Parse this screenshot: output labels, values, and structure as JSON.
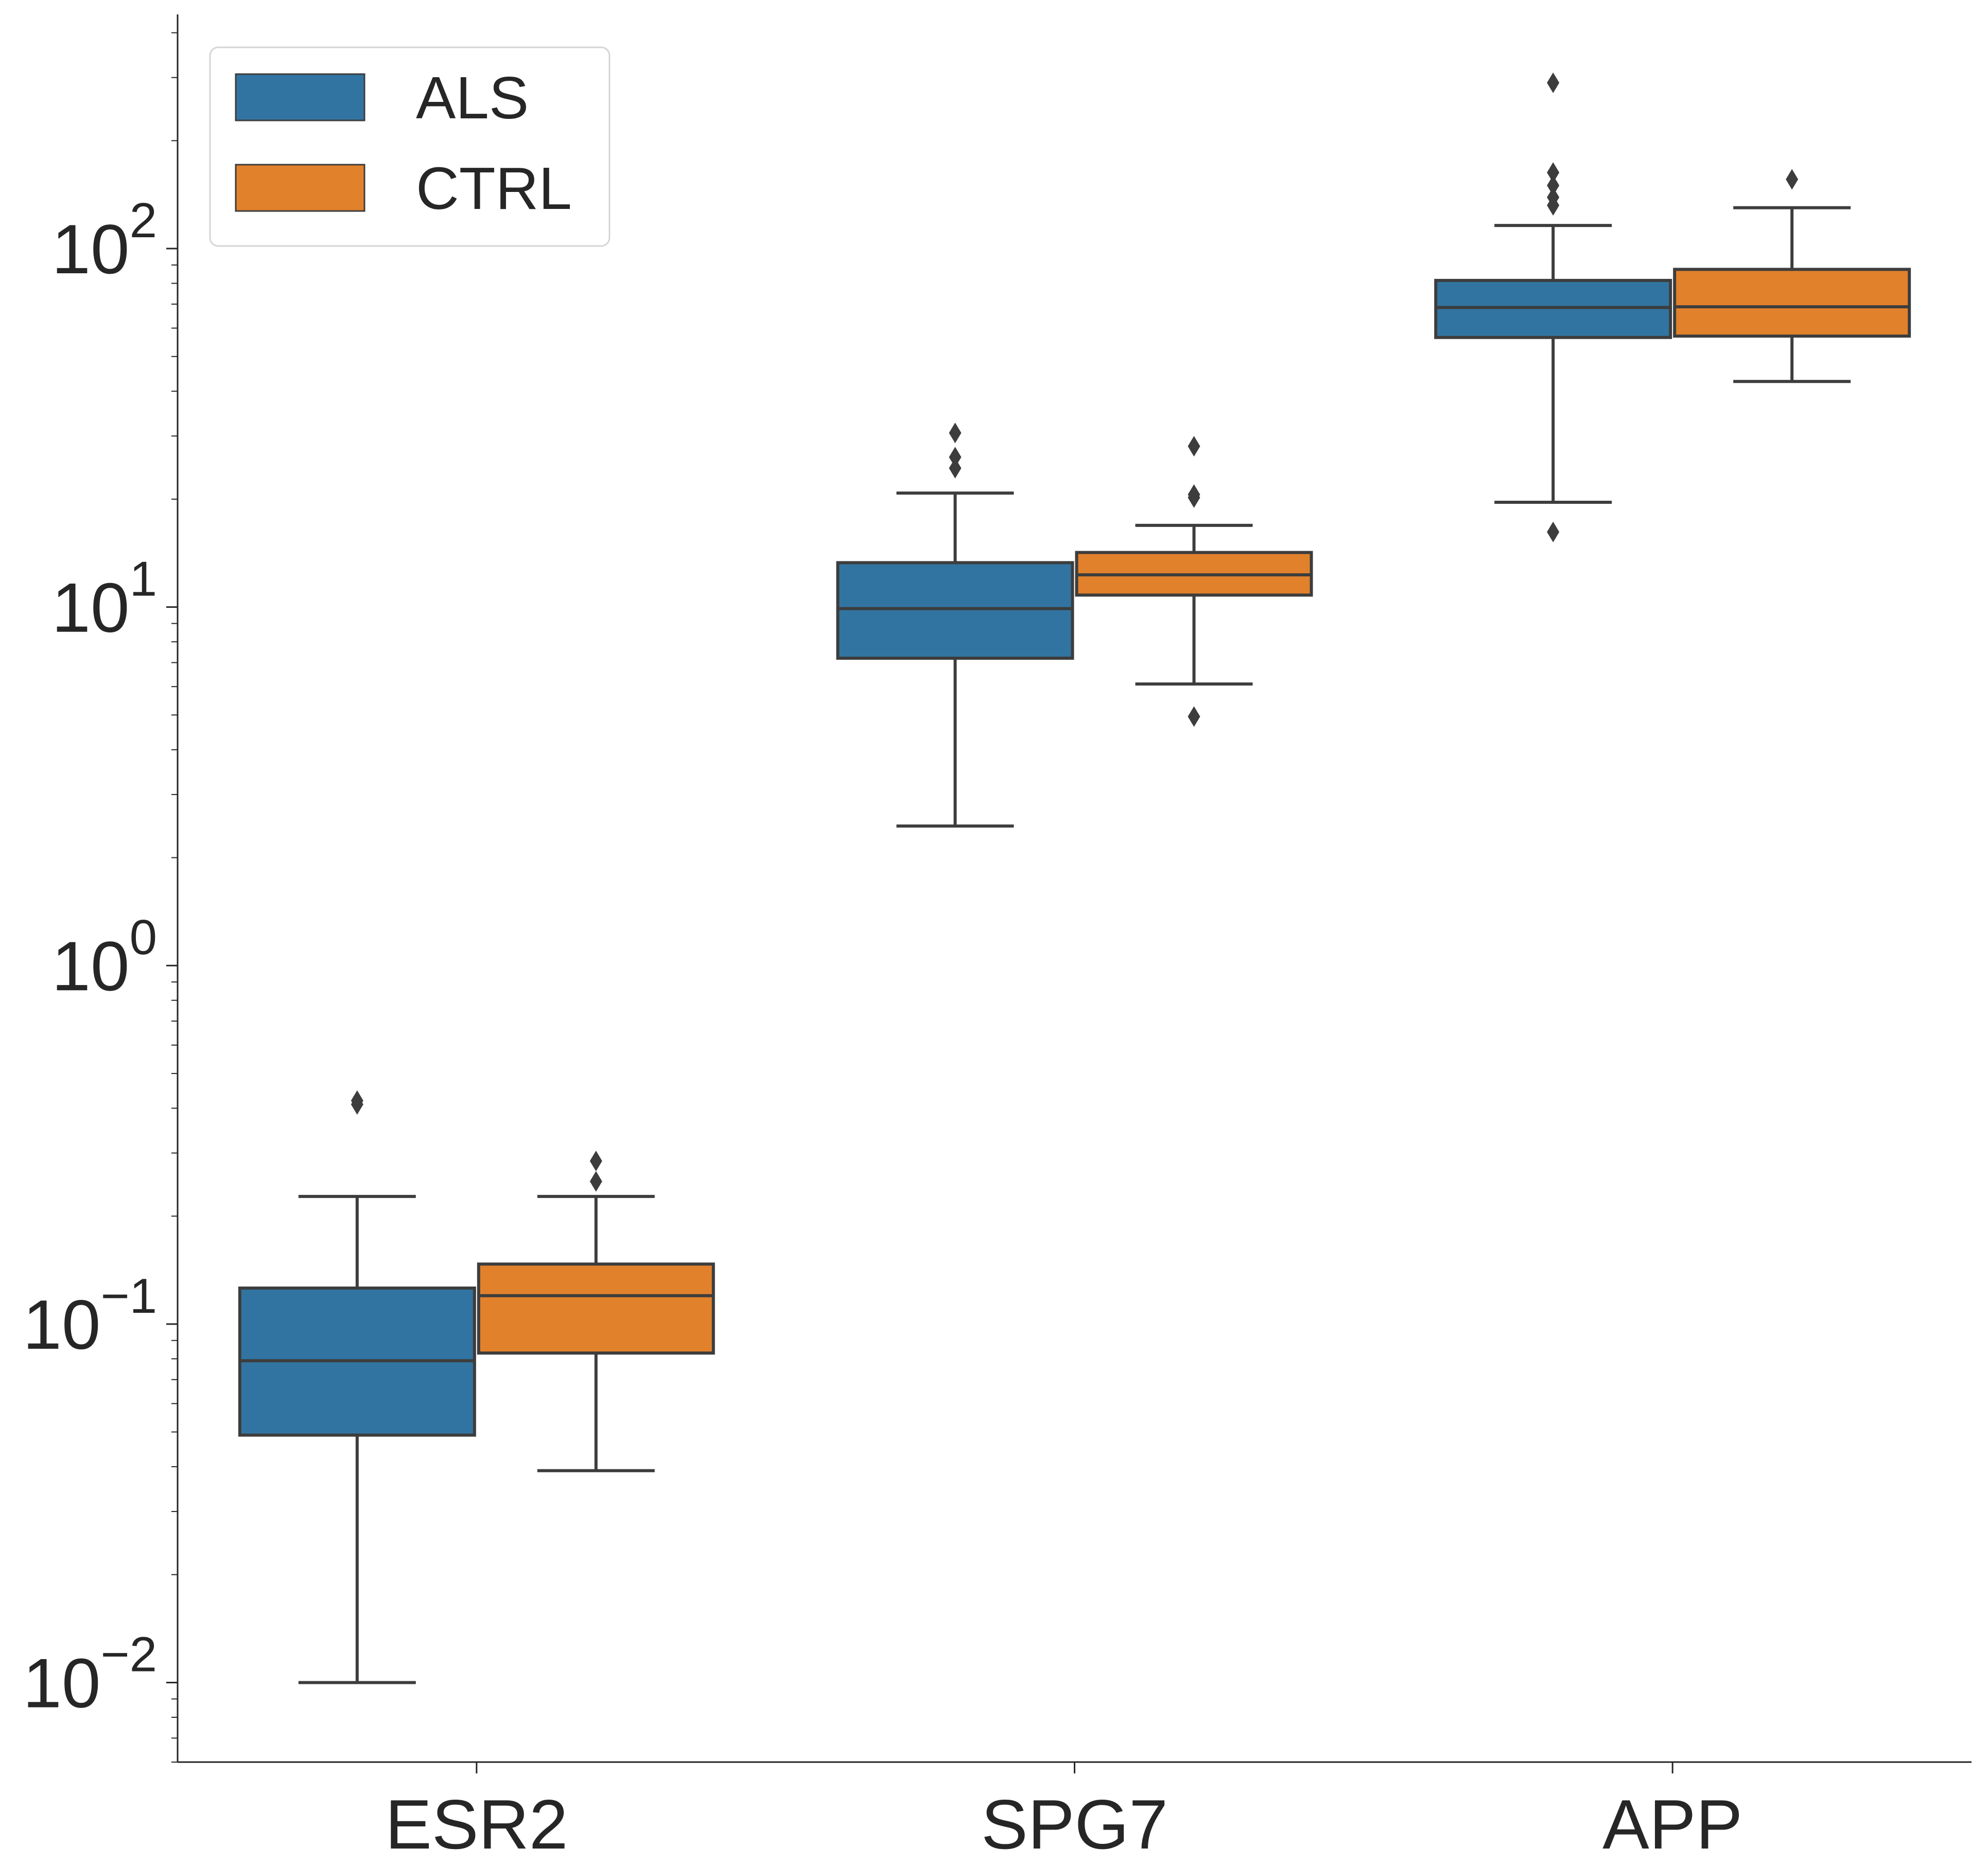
{
  "chart_data": {
    "type": "box",
    "title": "",
    "xlabel": "",
    "ylabel": "",
    "yscale": "log",
    "ylim": [
      0.006,
      450
    ],
    "yticks": [
      {
        "value": 0.01,
        "mantissa": "10",
        "exponent": "−2"
      },
      {
        "value": 0.1,
        "mantissa": "10",
        "exponent": "−1"
      },
      {
        "value": 1,
        "mantissa": "10",
        "exponent": "0"
      },
      {
        "value": 10,
        "mantissa": "10",
        "exponent": "1"
      },
      {
        "value": 100,
        "mantissa": "10",
        "exponent": "2"
      }
    ],
    "categories": [
      "ESR2",
      "SPG7",
      "APP"
    ],
    "legend": {
      "position": "upper-left"
    },
    "grid": false,
    "series": [
      {
        "name": "ALS",
        "color": "#3274a1",
        "boxes": [
          {
            "whisker_low": 0.01,
            "q1": 0.049,
            "median": 0.079,
            "q3": 0.126,
            "whisker_high": 0.227,
            "fliers": [
              0.41,
              0.42
            ]
          },
          {
            "whisker_low": 2.45,
            "q1": 7.2,
            "median": 9.9,
            "q3": 13.3,
            "whisker_high": 20.8,
            "fliers": [
              24.4,
              26.2,
              30.6
            ]
          },
          {
            "whisker_low": 19.6,
            "q1": 56.5,
            "median": 68.5,
            "q3": 81.5,
            "whisker_high": 116,
            "fliers": [
              16.2,
              132,
              139,
              150,
              163,
              290
            ]
          }
        ]
      },
      {
        "name": "CTRL",
        "color": "#e1812c",
        "boxes": [
          {
            "whisker_low": 0.039,
            "q1": 0.083,
            "median": 0.12,
            "q3": 0.147,
            "whisker_high": 0.227,
            "fliers": [
              0.25,
              0.285
            ]
          },
          {
            "whisker_low": 6.1,
            "q1": 10.8,
            "median": 12.3,
            "q3": 14.2,
            "whisker_high": 16.9,
            "fliers": [
              4.95,
              20.2,
              20.6,
              28.1
            ]
          },
          {
            "whisker_low": 42.6,
            "q1": 57,
            "median": 68.8,
            "q3": 87.5,
            "whisker_high": 130,
            "fliers": [
              156
            ]
          }
        ]
      }
    ]
  }
}
